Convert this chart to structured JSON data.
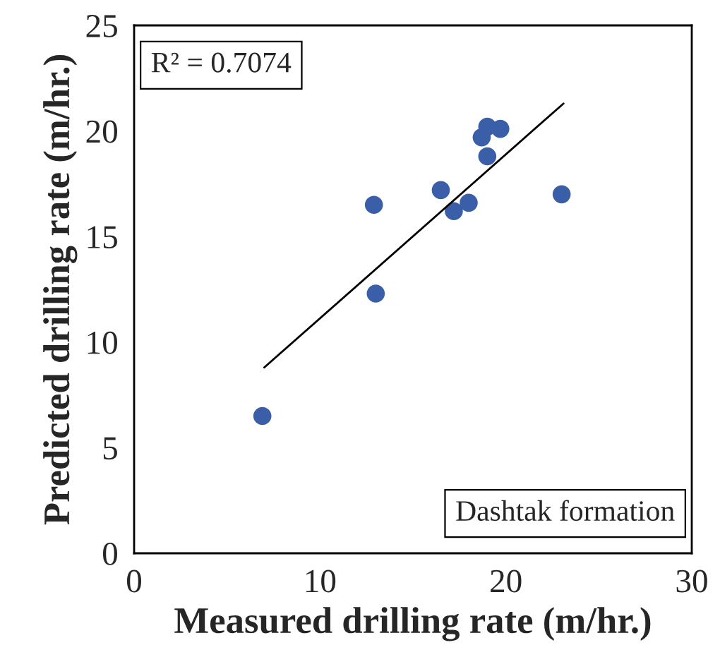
{
  "chart_data": {
    "type": "scatter",
    "xlabel": "Measured drilling rate (m/hr.)",
    "ylabel": "Predicted drilling rate (m/hr.)",
    "xlim": [
      0,
      30
    ],
    "xticks": [
      0,
      10,
      20,
      30
    ],
    "ylim": [
      0,
      25
    ],
    "yticks": [
      0,
      5,
      10,
      15,
      20,
      25
    ],
    "grid": false,
    "series": [
      {
        "marker": "circle",
        "color": "#3a5ea8",
        "x": [
          6.9,
          12.9,
          13.0,
          16.5,
          17.2,
          18.0,
          18.7,
          19.0,
          19.0,
          19.7,
          23.0
        ],
        "values": [
          6.5,
          16.5,
          12.3,
          17.2,
          16.2,
          16.6,
          19.7,
          20.2,
          18.8,
          20.1,
          17.0
        ]
      },
      {
        "type": "line",
        "marker": "none",
        "color": "#000000",
        "x": [
          7.0,
          23.1
        ],
        "values": [
          8.8,
          21.3
        ]
      }
    ],
    "annotations": [
      "R² = 0.7074",
      "Dashtak formation"
    ]
  }
}
